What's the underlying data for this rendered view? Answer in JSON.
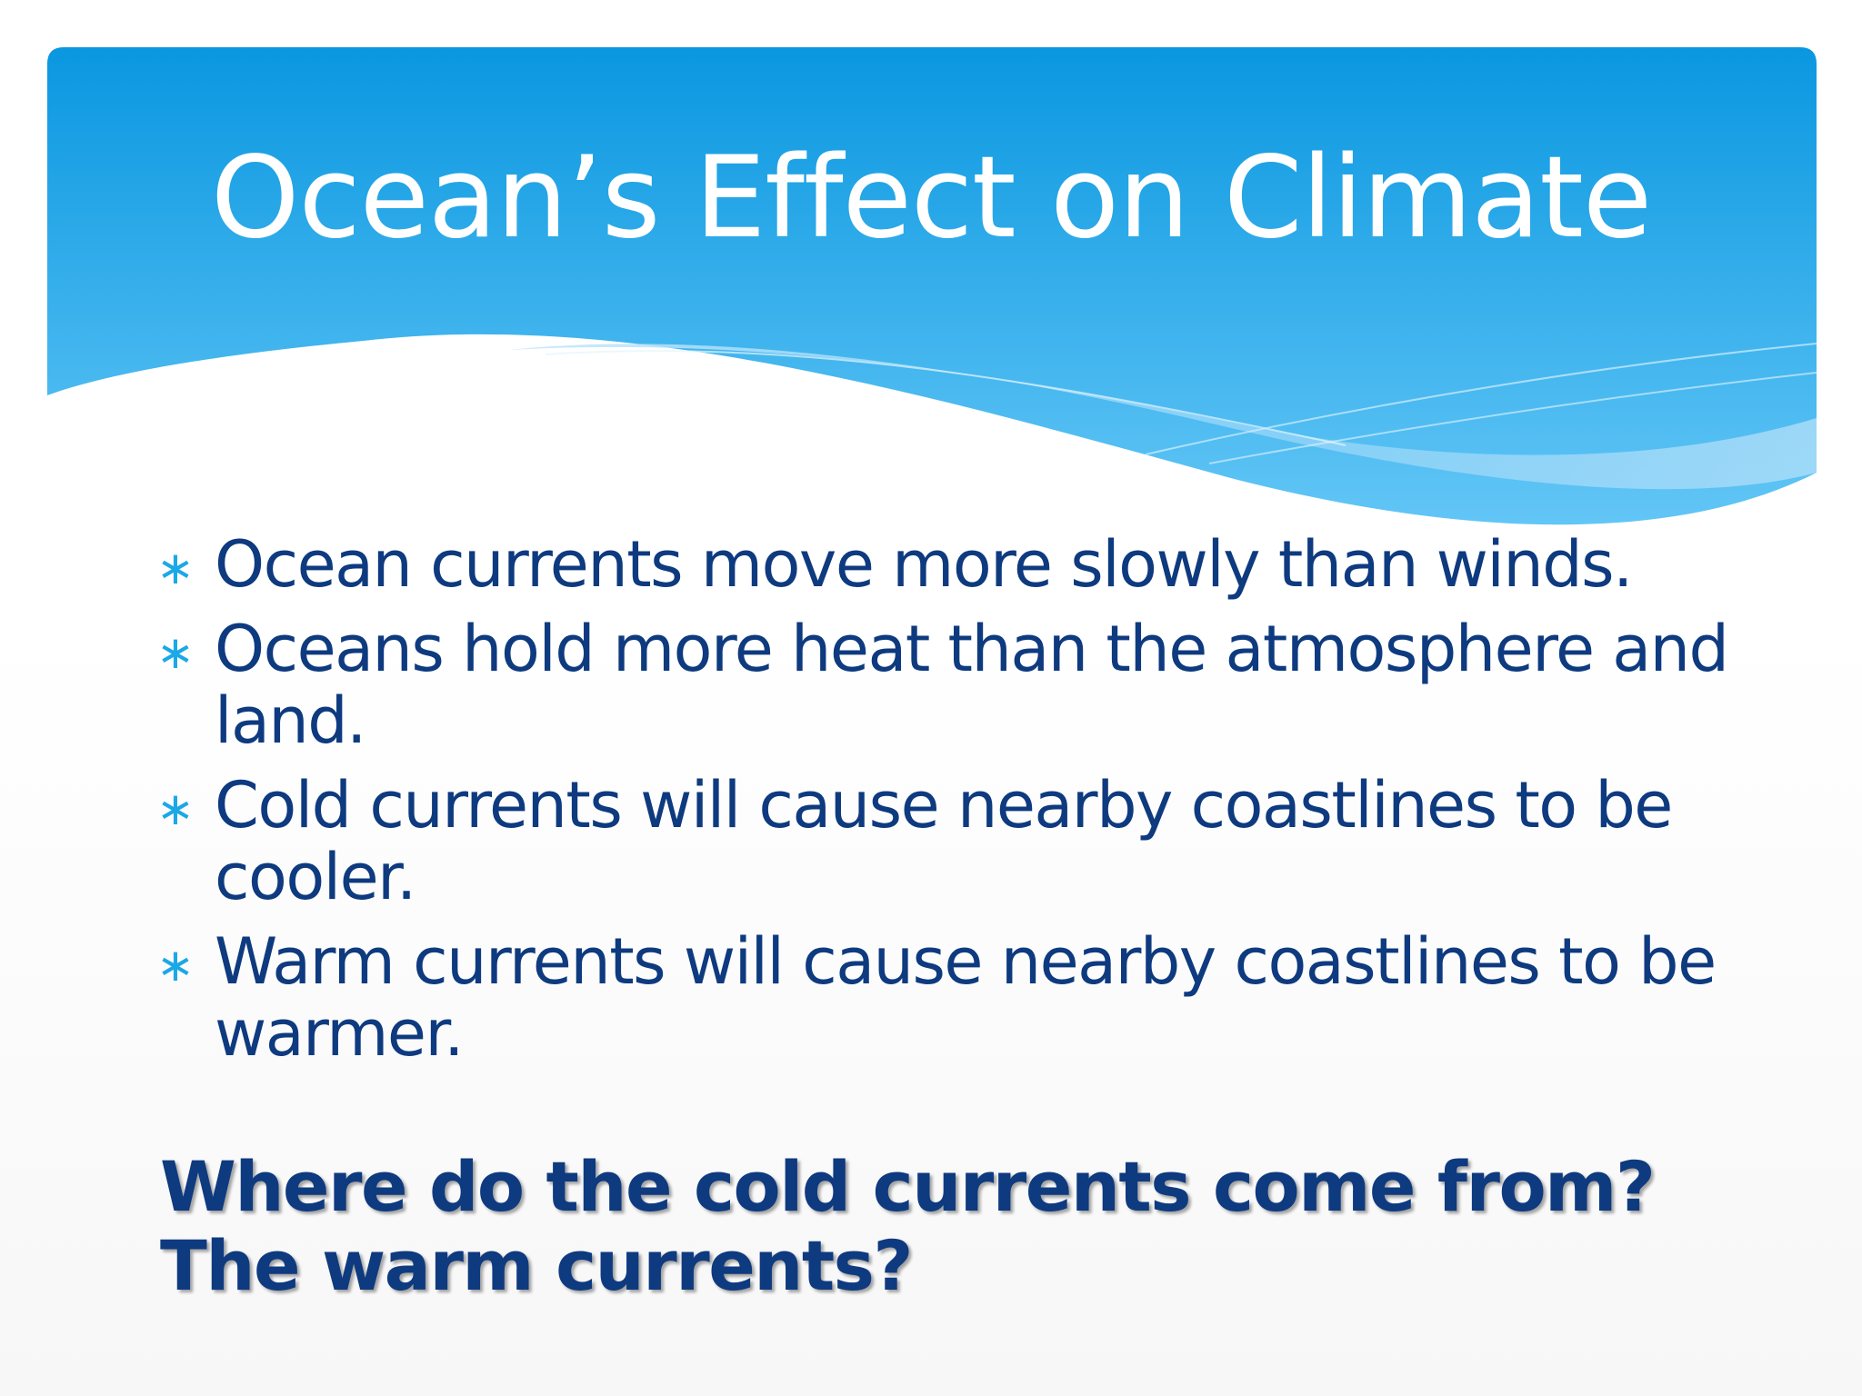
{
  "slide": {
    "title": "Ocean’s Effect on Climate",
    "bullet_icon": "asterisk-icon",
    "bullets": [
      {
        "text": "Ocean currents move more slowly than winds."
      },
      {
        "text": "Oceans hold more heat than the atmosphere and land."
      },
      {
        "text": "Cold currents will cause nearby coastlines to be cooler."
      },
      {
        "text": "Warm currents will cause nearby coastlines to be warmer."
      }
    ],
    "question": "Where do the cold currents come from? The warm currents?"
  },
  "colors": {
    "header_top": "#0a97e0",
    "header_bottom": "#5cc3f5",
    "title_text": "#ffffff",
    "body_text": "#0e3a7f",
    "bullet_icon": "#1ba8e6"
  }
}
